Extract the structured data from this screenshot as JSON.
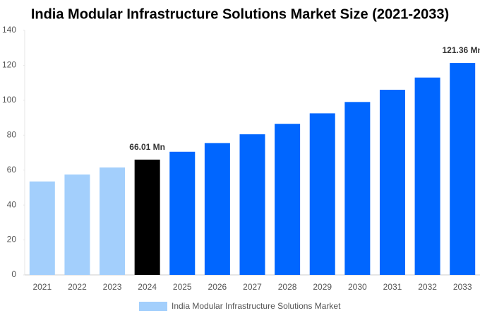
{
  "chart_data": {
    "type": "bar",
    "title": "India Modular Infrastructure Solutions Market Size (2021-2033)",
    "categories": [
      "2021",
      "2022",
      "2023",
      "2024",
      "2025",
      "2026",
      "2027",
      "2028",
      "2029",
      "2030",
      "2031",
      "2032",
      "2033"
    ],
    "series": [
      {
        "name": "India Modular Infrastructure Solutions Market",
        "color": "#a3cffc",
        "colors": [
          "#a3cffc",
          "#a3cffc",
          "#a3cffc",
          "#000000",
          "#0066ff",
          "#0066ff",
          "#0066ff",
          "#0066ff",
          "#0066ff",
          "#0066ff",
          "#0066ff",
          "#0066ff",
          "#0066ff"
        ],
        "values": [
          53.5,
          57.5,
          61.5,
          66.01,
          70.5,
          75.5,
          80.5,
          86.5,
          92.5,
          99,
          106,
          113,
          121.36
        ],
        "value_labels": [
          null,
          null,
          null,
          "66.01 Mn",
          null,
          null,
          null,
          null,
          null,
          null,
          null,
          null,
          "121.36 Mn"
        ]
      }
    ],
    "ylim": [
      0,
      140
    ],
    "yticks": [
      0,
      20,
      40,
      60,
      80,
      100,
      120,
      140
    ]
  }
}
